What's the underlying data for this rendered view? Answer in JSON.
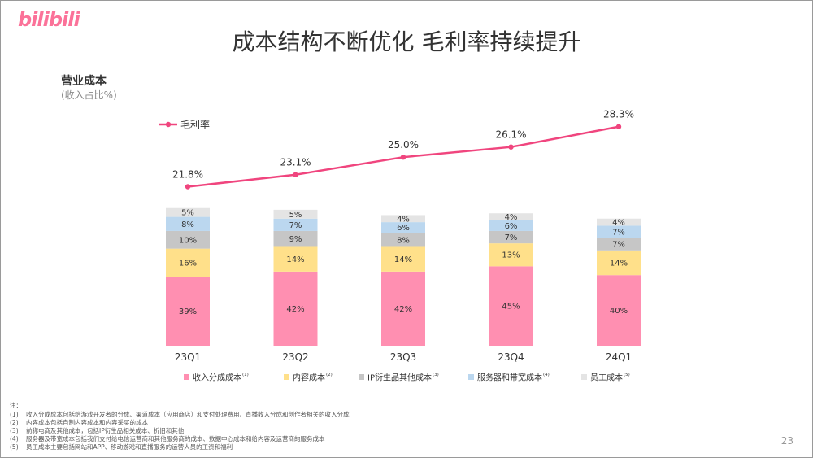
{
  "logo_text": "bilibili",
  "title": "成本结构不断优化 毛利率持续提升",
  "subtitle": "营业成本",
  "unit_label": "(收入占比%)",
  "page_number": "23",
  "colors": {
    "brand": "#FB7299",
    "line": "#F0457E",
    "revenue_share": "#FF8FB1",
    "content": "#FFE08A",
    "ip": "#C6C6C6",
    "server": "#BBD7EF",
    "staff": "#E4E4E4"
  },
  "notes": {
    "header": "注：",
    "items": [
      {
        "num": "(1)",
        "text": "收入分成成本包括给游戏开发者的分成、渠道成本（应用商店）和支付处理费用、直播收入分成和创作者相关的收入分成"
      },
      {
        "num": "(2)",
        "text": "内容成本包括自制内容成本和内容采买的成本"
      },
      {
        "num": "(3)",
        "text": "前称电商及其他成本，包括IP衍生品相关成本、折旧和其他"
      },
      {
        "num": "(4)",
        "text": "服务器及带宽成本包括我们支付给电信运营商和其他服务商的成本、数据中心成本和给内容及运营商的服务成本"
      },
      {
        "num": "(5)",
        "text": "员工成本主要包括网站和APP、移动游戏和直播服务的运营人员的工资和福利"
      }
    ]
  },
  "chart_data": {
    "type": "bar",
    "stacked": true,
    "categories": [
      "23Q1",
      "23Q2",
      "23Q3",
      "23Q4",
      "24Q1"
    ],
    "series": [
      {
        "name": "收入分成成本",
        "sup": "(1)",
        "color": "#FF8FB1",
        "values": [
          39,
          42,
          42,
          45,
          40
        ],
        "labels": [
          "39%",
          "42%",
          "42%",
          "45%",
          "40%"
        ]
      },
      {
        "name": "内容成本",
        "sup": "(2)",
        "color": "#FFE08A",
        "values": [
          16,
          14,
          14,
          13,
          14
        ],
        "labels": [
          "16%",
          "14%",
          "14%",
          "13%",
          "14%"
        ]
      },
      {
        "name": "IP衍生品其他成本",
        "sup": "(3)",
        "color": "#C6C6C6",
        "values": [
          10,
          9,
          8,
          7,
          7
        ],
        "labels": [
          "10%",
          "9%",
          "8%",
          "7%",
          "7%"
        ]
      },
      {
        "name": "服务器和带宽成本",
        "sup": "(4)",
        "color": "#BBD7EF",
        "values": [
          8,
          7,
          6,
          6,
          7
        ],
        "labels": [
          "8%",
          "7%",
          "6%",
          "6%",
          "7%"
        ]
      },
      {
        "name": "员工成本",
        "sup": "(5)",
        "color": "#E4E4E4",
        "values": [
          5,
          5,
          4,
          4,
          4
        ],
        "labels": [
          "5%",
          "5%",
          "4%",
          "4%",
          "4%"
        ]
      }
    ],
    "line": {
      "name": "毛利率",
      "color": "#F0457E",
      "values": [
        21.8,
        23.1,
        25.0,
        26.1,
        28.3
      ],
      "labels": [
        "21.8%",
        "23.1%",
        "25.0%",
        "26.1%",
        "28.3%"
      ]
    },
    "legend_position": "bottom",
    "line_legend_position": "top-left",
    "grid": false
  }
}
